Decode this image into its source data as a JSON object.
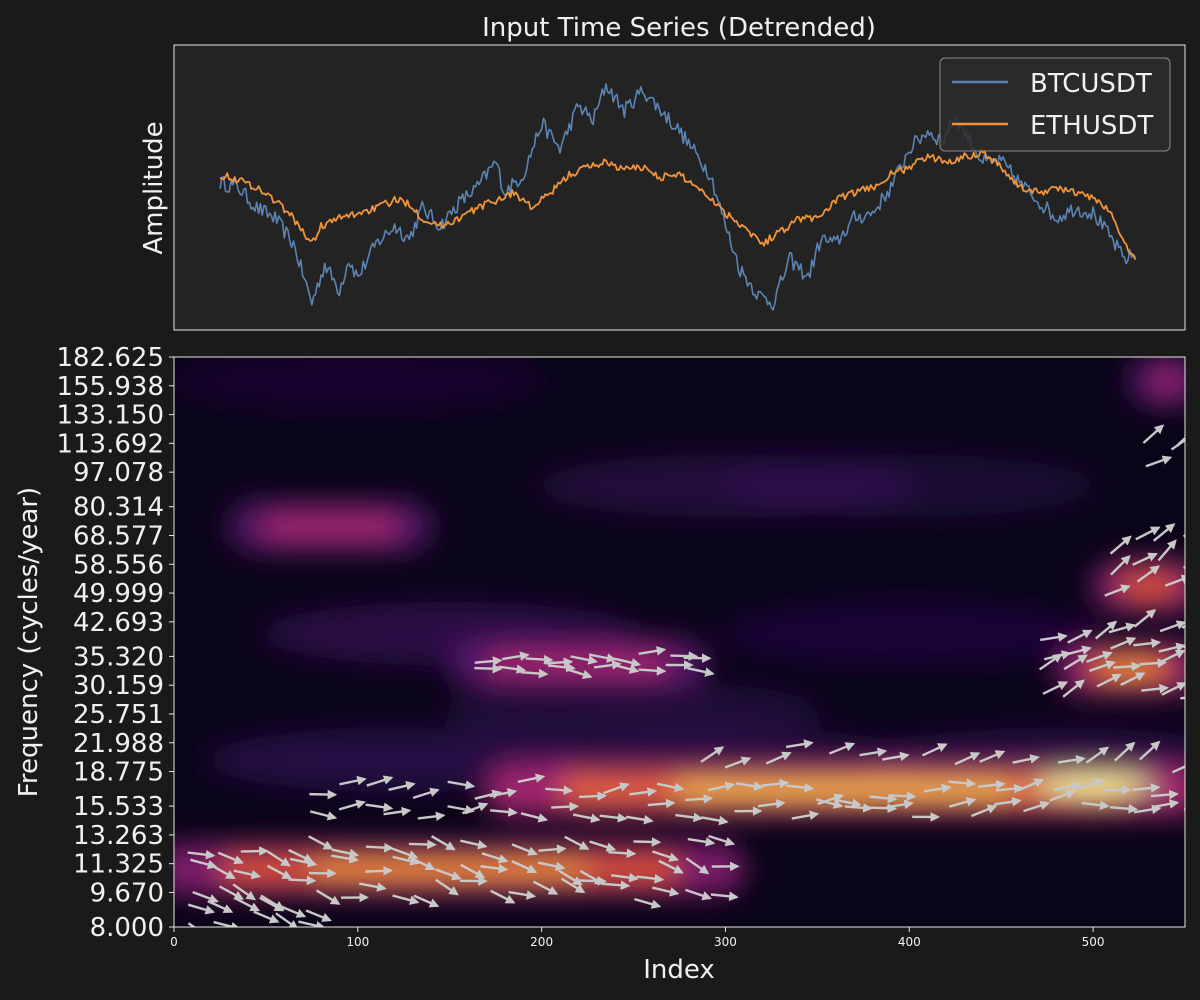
{
  "colors": {
    "background": "#1a1a1a",
    "panel": "#232323",
    "series_btc": "#5b84b4",
    "series_eth": "#f0943a",
    "arrow": "#c8c8c8",
    "text": "#f0f0f0"
  },
  "chart_data": [
    {
      "type": "line",
      "title": "Input Time Series (Detrended)",
      "ylabel": "Amplitude",
      "xlabel": "",
      "x_range": [
        25,
        523
      ],
      "xlim": [
        0,
        550
      ],
      "grid": false,
      "legend_position": "top-right",
      "series": [
        {
          "name": "BTCUSDT",
          "color": "#5b84b4",
          "keypoints": [
            [
              25,
              0.52
            ],
            [
              35,
              0.5
            ],
            [
              45,
              0.42
            ],
            [
              55,
              0.38
            ],
            [
              65,
              0.28
            ],
            [
              75,
              0.05
            ],
            [
              82,
              0.2
            ],
            [
              90,
              0.1
            ],
            [
              95,
              0.22
            ],
            [
              100,
              0.15
            ],
            [
              110,
              0.28
            ],
            [
              120,
              0.35
            ],
            [
              128,
              0.3
            ],
            [
              135,
              0.42
            ],
            [
              145,
              0.35
            ],
            [
              155,
              0.44
            ],
            [
              165,
              0.5
            ],
            [
              175,
              0.6
            ],
            [
              180,
              0.48
            ],
            [
              190,
              0.55
            ],
            [
              200,
              0.75
            ],
            [
              210,
              0.65
            ],
            [
              220,
              0.82
            ],
            [
              228,
              0.76
            ],
            [
              235,
              0.9
            ],
            [
              245,
              0.8
            ],
            [
              255,
              0.88
            ],
            [
              265,
              0.8
            ],
            [
              275,
              0.72
            ],
            [
              285,
              0.62
            ],
            [
              292,
              0.55
            ],
            [
              300,
              0.35
            ],
            [
              308,
              0.18
            ],
            [
              318,
              0.08
            ],
            [
              326,
              0.05
            ],
            [
              335,
              0.22
            ],
            [
              345,
              0.15
            ],
            [
              352,
              0.3
            ],
            [
              360,
              0.28
            ],
            [
              370,
              0.38
            ],
            [
              380,
              0.4
            ],
            [
              390,
              0.5
            ],
            [
              400,
              0.65
            ],
            [
              410,
              0.72
            ],
            [
              418,
              0.68
            ],
            [
              425,
              0.78
            ],
            [
              430,
              0.72
            ],
            [
              440,
              0.6
            ],
            [
              450,
              0.6
            ],
            [
              460,
              0.52
            ],
            [
              470,
              0.45
            ],
            [
              480,
              0.38
            ],
            [
              490,
              0.42
            ],
            [
              500,
              0.4
            ],
            [
              510,
              0.3
            ],
            [
              517,
              0.22
            ],
            [
              523,
              0.24
            ]
          ]
        },
        {
          "name": "ETHUSDT",
          "color": "#f0943a",
          "keypoints": [
            [
              25,
              0.55
            ],
            [
              35,
              0.53
            ],
            [
              45,
              0.5
            ],
            [
              55,
              0.45
            ],
            [
              65,
              0.38
            ],
            [
              75,
              0.28
            ],
            [
              80,
              0.35
            ],
            [
              90,
              0.38
            ],
            [
              100,
              0.4
            ],
            [
              110,
              0.42
            ],
            [
              120,
              0.45
            ],
            [
              128,
              0.44
            ],
            [
              135,
              0.38
            ],
            [
              145,
              0.35
            ],
            [
              155,
              0.38
            ],
            [
              165,
              0.42
            ],
            [
              175,
              0.45
            ],
            [
              185,
              0.48
            ],
            [
              195,
              0.42
            ],
            [
              205,
              0.48
            ],
            [
              215,
              0.55
            ],
            [
              225,
              0.58
            ],
            [
              235,
              0.6
            ],
            [
              245,
              0.57
            ],
            [
              255,
              0.58
            ],
            [
              265,
              0.54
            ],
            [
              275,
              0.55
            ],
            [
              285,
              0.5
            ],
            [
              292,
              0.46
            ],
            [
              300,
              0.4
            ],
            [
              310,
              0.35
            ],
            [
              320,
              0.28
            ],
            [
              330,
              0.33
            ],
            [
              340,
              0.38
            ],
            [
              350,
              0.38
            ],
            [
              360,
              0.45
            ],
            [
              370,
              0.48
            ],
            [
              380,
              0.5
            ],
            [
              390,
              0.55
            ],
            [
              400,
              0.58
            ],
            [
              410,
              0.62
            ],
            [
              420,
              0.6
            ],
            [
              430,
              0.62
            ],
            [
              440,
              0.64
            ],
            [
              450,
              0.58
            ],
            [
              460,
              0.5
            ],
            [
              470,
              0.48
            ],
            [
              480,
              0.5
            ],
            [
              490,
              0.48
            ],
            [
              500,
              0.46
            ],
            [
              510,
              0.4
            ],
            [
              517,
              0.28
            ],
            [
              523,
              0.22
            ]
          ]
        }
      ]
    },
    {
      "type": "heatmap",
      "title": "",
      "xlabel": "Index",
      "ylabel": "Frequency (cycles/year)",
      "xlim": [
        0,
        550
      ],
      "xticks": [
        0,
        100,
        200,
        300,
        400,
        500
      ],
      "yscale": "log",
      "ylim": [
        8.0,
        182.625
      ],
      "yticks": [
        8.0,
        9.67,
        11.325,
        13.263,
        15.533,
        18.775,
        21.988,
        25.751,
        30.159,
        35.32,
        42.693,
        49.999,
        58.556,
        68.577,
        80.314,
        97.078,
        113.692,
        133.15,
        155.938,
        182.625
      ],
      "ytick_labels": [
        "8.000",
        "9.670",
        "11.325",
        "13.263",
        "15.533",
        "18.775",
        "21.988",
        "25.751",
        "30.159",
        "35.320",
        "42.693",
        "49.999",
        "58.556",
        "68.577",
        "80.314",
        "97.078",
        "113.692",
        "133.150",
        "155.938",
        "182.625"
      ],
      "colormap": "inferno",
      "power_ridges": [
        {
          "x0": 0,
          "x1": 300,
          "f": 11.0,
          "intensity": 0.75
        },
        {
          "x0": 180,
          "x1": 550,
          "f": 17.0,
          "intensity": 0.85
        },
        {
          "x0": 160,
          "x1": 280,
          "f": 34.0,
          "intensity": 0.6
        },
        {
          "x0": 40,
          "x1": 130,
          "f": 72.0,
          "intensity": 0.3
        },
        {
          "x0": 490,
          "x1": 550,
          "f": 33.0,
          "intensity": 0.8
        },
        {
          "x0": 510,
          "x1": 550,
          "f": 52.0,
          "intensity": 0.7
        },
        {
          "x0": 530,
          "x1": 550,
          "f": 160.0,
          "intensity": 0.5
        }
      ],
      "phase_arrows": "relative phase between BTCUSDT and ETHUSDT in regions of high coherence"
    }
  ]
}
